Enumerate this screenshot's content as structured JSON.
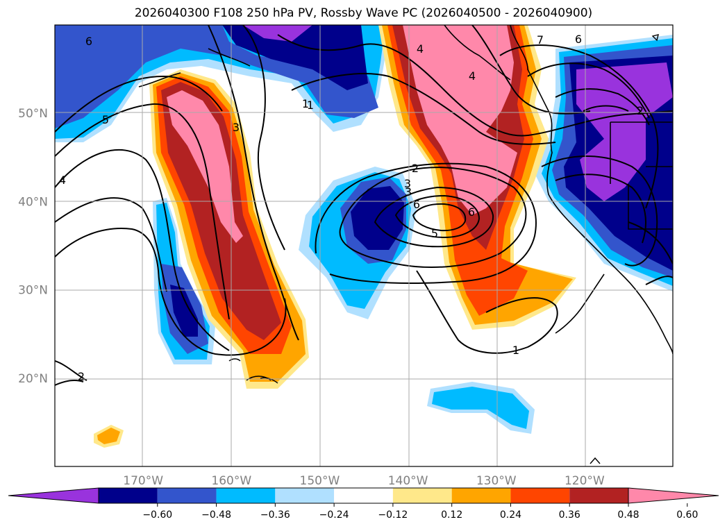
{
  "title": "2026040300 F108 250 hPa PV, Rossby Wave PC (2026040500 - 2026040900)",
  "latitudes": [
    {
      "label": "50°N",
      "value": 50
    },
    {
      "label": "40°N",
      "value": 40
    },
    {
      "label": "30°N",
      "value": 30
    },
    {
      "label": "20°N",
      "value": 20
    }
  ],
  "longitudes": [
    {
      "label": "170°W",
      "value": -170
    },
    {
      "label": "160°W",
      "value": -160
    },
    {
      "label": "150°W",
      "value": -150
    },
    {
      "label": "140°W",
      "value": -140
    },
    {
      "label": "130°W",
      "value": -130
    },
    {
      "label": "120°W",
      "value": -120
    }
  ],
  "colorbar": {
    "colors": [
      "#9933dd",
      "#00008b",
      "#3355cc",
      "#00bbff",
      "#b0e0ff",
      "#ffffff",
      "#ffe88a",
      "#ffa500",
      "#ff4500",
      "#b22222",
      "#ff88aa"
    ],
    "labels": [
      "−0.60",
      "−0.48",
      "−0.36",
      "−0.24",
      "−0.12",
      "0.12",
      "0.24",
      "0.36",
      "0.48",
      "0.60"
    ]
  },
  "contour_labels": [
    "6",
    "5",
    "4",
    "1",
    "3",
    "2",
    "3",
    "4",
    "6",
    "7",
    "6",
    "2",
    "2",
    "3",
    "4",
    "6",
    "5",
    "1",
    "1"
  ]
}
